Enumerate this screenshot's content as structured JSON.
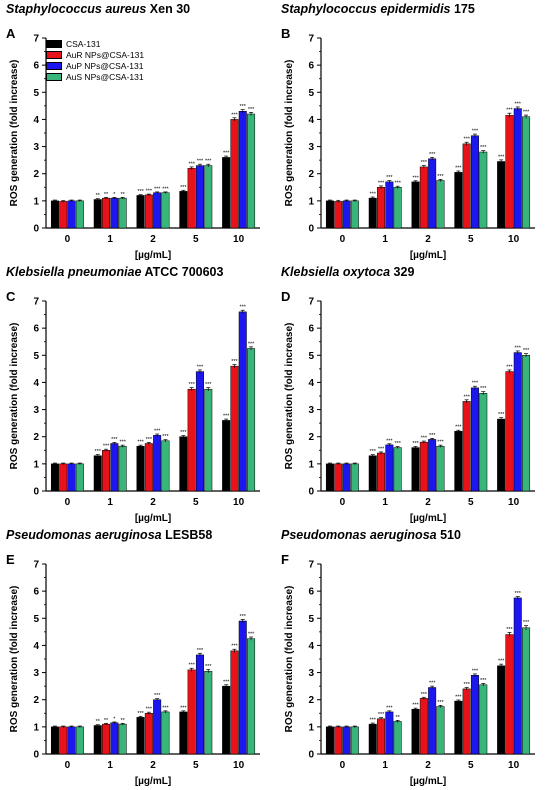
{
  "colors": {
    "CSA-131": "#000000",
    "AuR NPs@CSA-131": "#e8131a",
    "AuP NPs@CSA-131": "#1b17ee",
    "AuS NPs@CSA-131": "#3ab57a"
  },
  "chart_data": [
    {
      "type": "bar",
      "panel_label": "A",
      "title_italic": "Staphylococcus aureus",
      "title_rest": " Xen 30",
      "xlabel": "[µg/mL]",
      "ylabel": "ROS generation (fold increase)",
      "ylim": [
        0,
        7
      ],
      "yticks": [
        "0",
        "1",
        "2",
        "3",
        "4",
        "5",
        "6",
        "7"
      ],
      "categories": [
        "0",
        "1",
        "2",
        "5",
        "10"
      ],
      "legend": [
        "CSA-131",
        "AuR NPs@CSA-131",
        "AuP NPs@CSA-131",
        "AuS NPs@CSA-131"
      ],
      "series": [
        {
          "name": "CSA-131",
          "values": [
            1.0,
            1.05,
            1.2,
            1.35,
            2.6
          ],
          "errors": [
            0.03,
            0.03,
            0.03,
            0.04,
            0.05
          ],
          "labels": [
            "",
            "**",
            "***",
            "***",
            "***"
          ]
        },
        {
          "name": "AuR NPs@CSA-131",
          "values": [
            0.98,
            1.1,
            1.22,
            2.2,
            4.0
          ],
          "errors": [
            0.03,
            0.03,
            0.03,
            0.05,
            0.06
          ],
          "labels": [
            "",
            "**",
            "***",
            "***",
            "***"
          ]
        },
        {
          "name": "AuP NPs@CSA-131",
          "values": [
            1.0,
            1.1,
            1.3,
            2.3,
            4.3
          ],
          "errors": [
            0.03,
            0.03,
            0.03,
            0.05,
            0.06
          ],
          "labels": [
            "",
            "*",
            "***",
            "***",
            "***"
          ]
        },
        {
          "name": "AuS NPs@CSA-131",
          "values": [
            1.0,
            1.1,
            1.3,
            2.3,
            4.2
          ],
          "errors": [
            0.03,
            0.03,
            0.03,
            0.05,
            0.06
          ],
          "labels": [
            "",
            "**",
            "***",
            "***",
            "***"
          ]
        }
      ]
    },
    {
      "type": "bar",
      "panel_label": "B",
      "title_italic": "Staphylococcus epidermidis",
      "title_rest": " 175",
      "xlabel": "[µg/mL]",
      "ylabel": "ROS generation (fold increase)",
      "ylim": [
        0,
        7
      ],
      "yticks": [
        "0",
        "1",
        "2",
        "3",
        "4",
        "5",
        "6",
        "7"
      ],
      "categories": [
        "0",
        "1",
        "2",
        "5",
        "10"
      ],
      "series": [
        {
          "name": "CSA-131",
          "values": [
            1.0,
            1.1,
            1.7,
            2.05,
            2.45
          ],
          "errors": [
            0.03,
            0.04,
            0.04,
            0.05,
            0.06
          ],
          "labels": [
            "",
            "***",
            "***",
            "***",
            "***"
          ]
        },
        {
          "name": "AuR NPs@CSA-131",
          "values": [
            0.98,
            1.5,
            2.25,
            3.1,
            4.15
          ],
          "errors": [
            0.04,
            0.05,
            0.05,
            0.06,
            0.08
          ],
          "labels": [
            "",
            "***",
            "***",
            "***",
            "***"
          ]
        },
        {
          "name": "AuP NPs@CSA-131",
          "values": [
            1.0,
            1.7,
            2.55,
            3.4,
            4.4
          ],
          "errors": [
            0.03,
            0.05,
            0.05,
            0.06,
            0.06
          ],
          "labels": [
            "",
            "***",
            "***",
            "***",
            "***"
          ]
        },
        {
          "name": "AuS NPs@CSA-131",
          "values": [
            1.0,
            1.5,
            1.75,
            2.8,
            4.1
          ],
          "errors": [
            0.03,
            0.04,
            0.04,
            0.05,
            0.06
          ],
          "labels": [
            "",
            "***",
            "***",
            "***",
            "***"
          ]
        }
      ]
    },
    {
      "type": "bar",
      "panel_label": "C",
      "title_italic": "Klebsiella pneumoniae",
      "title_rest": " ATCC 700603",
      "xlabel": "[µg/mL]",
      "ylabel": "ROS generation (fold increase)",
      "ylim": [
        0,
        7
      ],
      "yticks": [
        "0",
        "1",
        "2",
        "3",
        "4",
        "5",
        "6",
        "7"
      ],
      "categories": [
        "0",
        "1",
        "2",
        "5",
        "10"
      ],
      "series": [
        {
          "name": "CSA-131",
          "values": [
            1.0,
            1.3,
            1.65,
            2.0,
            2.6
          ],
          "errors": [
            0.03,
            0.04,
            0.04,
            0.04,
            0.05
          ],
          "labels": [
            "",
            "***",
            "***",
            "***",
            "***"
          ]
        },
        {
          "name": "AuR NPs@CSA-131",
          "values": [
            1.0,
            1.5,
            1.75,
            3.75,
            4.6
          ],
          "errors": [
            0.03,
            0.04,
            0.04,
            0.06,
            0.06
          ],
          "labels": [
            "",
            "***",
            "***",
            "***",
            "***"
          ]
        },
        {
          "name": "AuP NPs@CSA-131",
          "values": [
            1.0,
            1.75,
            2.05,
            4.4,
            6.6
          ],
          "errors": [
            0.03,
            0.04,
            0.05,
            0.06,
            0.06
          ],
          "labels": [
            "",
            "***",
            "***",
            "***",
            "***"
          ]
        },
        {
          "name": "AuS NPs@CSA-131",
          "values": [
            1.0,
            1.65,
            1.85,
            3.75,
            5.25
          ],
          "errors": [
            0.03,
            0.04,
            0.04,
            0.06,
            0.06
          ],
          "labels": [
            "",
            "***",
            "***",
            "***",
            "***"
          ]
        }
      ]
    },
    {
      "type": "bar",
      "panel_label": "D",
      "title_italic": "Klebsiella oxytoca",
      "title_rest": " 329",
      "xlabel": "[µg/mL]",
      "ylabel": "ROS generation (fold increase)",
      "ylim": [
        0,
        7
      ],
      "yticks": [
        "0",
        "1",
        "2",
        "3",
        "4",
        "5",
        "6",
        "7"
      ],
      "categories": [
        "0",
        "1",
        "2",
        "5",
        "10"
      ],
      "series": [
        {
          "name": "CSA-131",
          "values": [
            1.0,
            1.3,
            1.6,
            2.2,
            2.65
          ],
          "errors": [
            0.03,
            0.04,
            0.04,
            0.04,
            0.05
          ],
          "labels": [
            "",
            "***",
            "***",
            "***",
            "***"
          ]
        },
        {
          "name": "AuR NPs@CSA-131",
          "values": [
            1.0,
            1.4,
            1.8,
            3.3,
            4.4
          ],
          "errors": [
            0.03,
            0.04,
            0.04,
            0.06,
            0.06
          ],
          "labels": [
            "",
            "***",
            "***",
            "***",
            "***"
          ]
        },
        {
          "name": "AuP NPs@CSA-131",
          "values": [
            1.0,
            1.7,
            1.9,
            3.8,
            5.1
          ],
          "errors": [
            0.03,
            0.04,
            0.04,
            0.06,
            0.06
          ],
          "labels": [
            "",
            "***",
            "***",
            "***",
            "***"
          ]
        },
        {
          "name": "AuS NPs@CSA-131",
          "values": [
            1.0,
            1.6,
            1.65,
            3.6,
            5.0
          ],
          "errors": [
            0.03,
            0.04,
            0.04,
            0.06,
            0.06
          ],
          "labels": [
            "",
            "***",
            "***",
            "***",
            "***"
          ]
        }
      ]
    },
    {
      "type": "bar",
      "panel_label": "E",
      "title_italic": "Pseudomonas aeruginosa",
      "title_rest": " LESB58",
      "xlabel": "[µg/mL]",
      "ylabel": "ROS generation (fold increase)",
      "ylim": [
        0,
        7
      ],
      "yticks": [
        "0",
        "1",
        "2",
        "3",
        "4",
        "5",
        "6",
        "7"
      ],
      "categories": [
        "0",
        "1",
        "2",
        "5",
        "10"
      ],
      "series": [
        {
          "name": "CSA-131",
          "values": [
            1.0,
            1.05,
            1.35,
            1.55,
            2.5
          ],
          "errors": [
            0.03,
            0.03,
            0.04,
            0.04,
            0.05
          ],
          "labels": [
            "",
            "**",
            "***",
            "***",
            "***"
          ]
        },
        {
          "name": "AuR NPs@CSA-131",
          "values": [
            1.0,
            1.1,
            1.5,
            3.1,
            3.8
          ],
          "errors": [
            0.03,
            0.03,
            0.04,
            0.06,
            0.06
          ],
          "labels": [
            "",
            "**",
            "***",
            "***",
            "***"
          ]
        },
        {
          "name": "AuP NPs@CSA-131",
          "values": [
            1.0,
            1.15,
            2.0,
            3.65,
            4.9
          ],
          "errors": [
            0.03,
            0.03,
            0.04,
            0.06,
            0.06
          ],
          "labels": [
            "",
            "*",
            "***",
            "***",
            "***"
          ]
        },
        {
          "name": "AuS NPs@CSA-131",
          "values": [
            1.0,
            1.1,
            1.55,
            3.05,
            4.25
          ],
          "errors": [
            0.03,
            0.03,
            0.04,
            0.06,
            0.06
          ],
          "labels": [
            "",
            "**",
            "***",
            "***",
            "***"
          ]
        }
      ]
    },
    {
      "type": "bar",
      "panel_label": "F",
      "title_italic": "Pseudomonas aeruginosa",
      "title_rest": " 510",
      "xlabel": "[µg/mL]",
      "ylabel": "ROS generation (fold increase)",
      "ylim": [
        0,
        7
      ],
      "yticks": [
        "0",
        "1",
        "2",
        "3",
        "4",
        "5",
        "6",
        "7"
      ],
      "categories": [
        "0",
        "1",
        "2",
        "5",
        "10"
      ],
      "series": [
        {
          "name": "CSA-131",
          "values": [
            1.0,
            1.1,
            1.65,
            1.95,
            3.25
          ],
          "errors": [
            0.03,
            0.04,
            0.04,
            0.04,
            0.06
          ],
          "labels": [
            "",
            "***",
            "***",
            "***",
            "***"
          ]
        },
        {
          "name": "AuR NPs@CSA-131",
          "values": [
            1.0,
            1.3,
            2.05,
            2.4,
            4.4
          ],
          "errors": [
            0.03,
            0.04,
            0.04,
            0.05,
            0.08
          ],
          "labels": [
            "",
            "***",
            "***",
            "***",
            "***"
          ]
        },
        {
          "name": "AuP NPs@CSA-131",
          "values": [
            1.0,
            1.55,
            2.45,
            2.9,
            5.75
          ],
          "errors": [
            0.03,
            0.04,
            0.05,
            0.05,
            0.05
          ],
          "labels": [
            "",
            "***",
            "***",
            "***",
            "***"
          ]
        },
        {
          "name": "AuS NPs@CSA-131",
          "values": [
            1.0,
            1.2,
            1.75,
            2.55,
            4.65
          ],
          "errors": [
            0.03,
            0.04,
            0.04,
            0.05,
            0.08
          ],
          "labels": [
            "",
            "**",
            "***",
            "***",
            "***"
          ]
        }
      ]
    }
  ]
}
